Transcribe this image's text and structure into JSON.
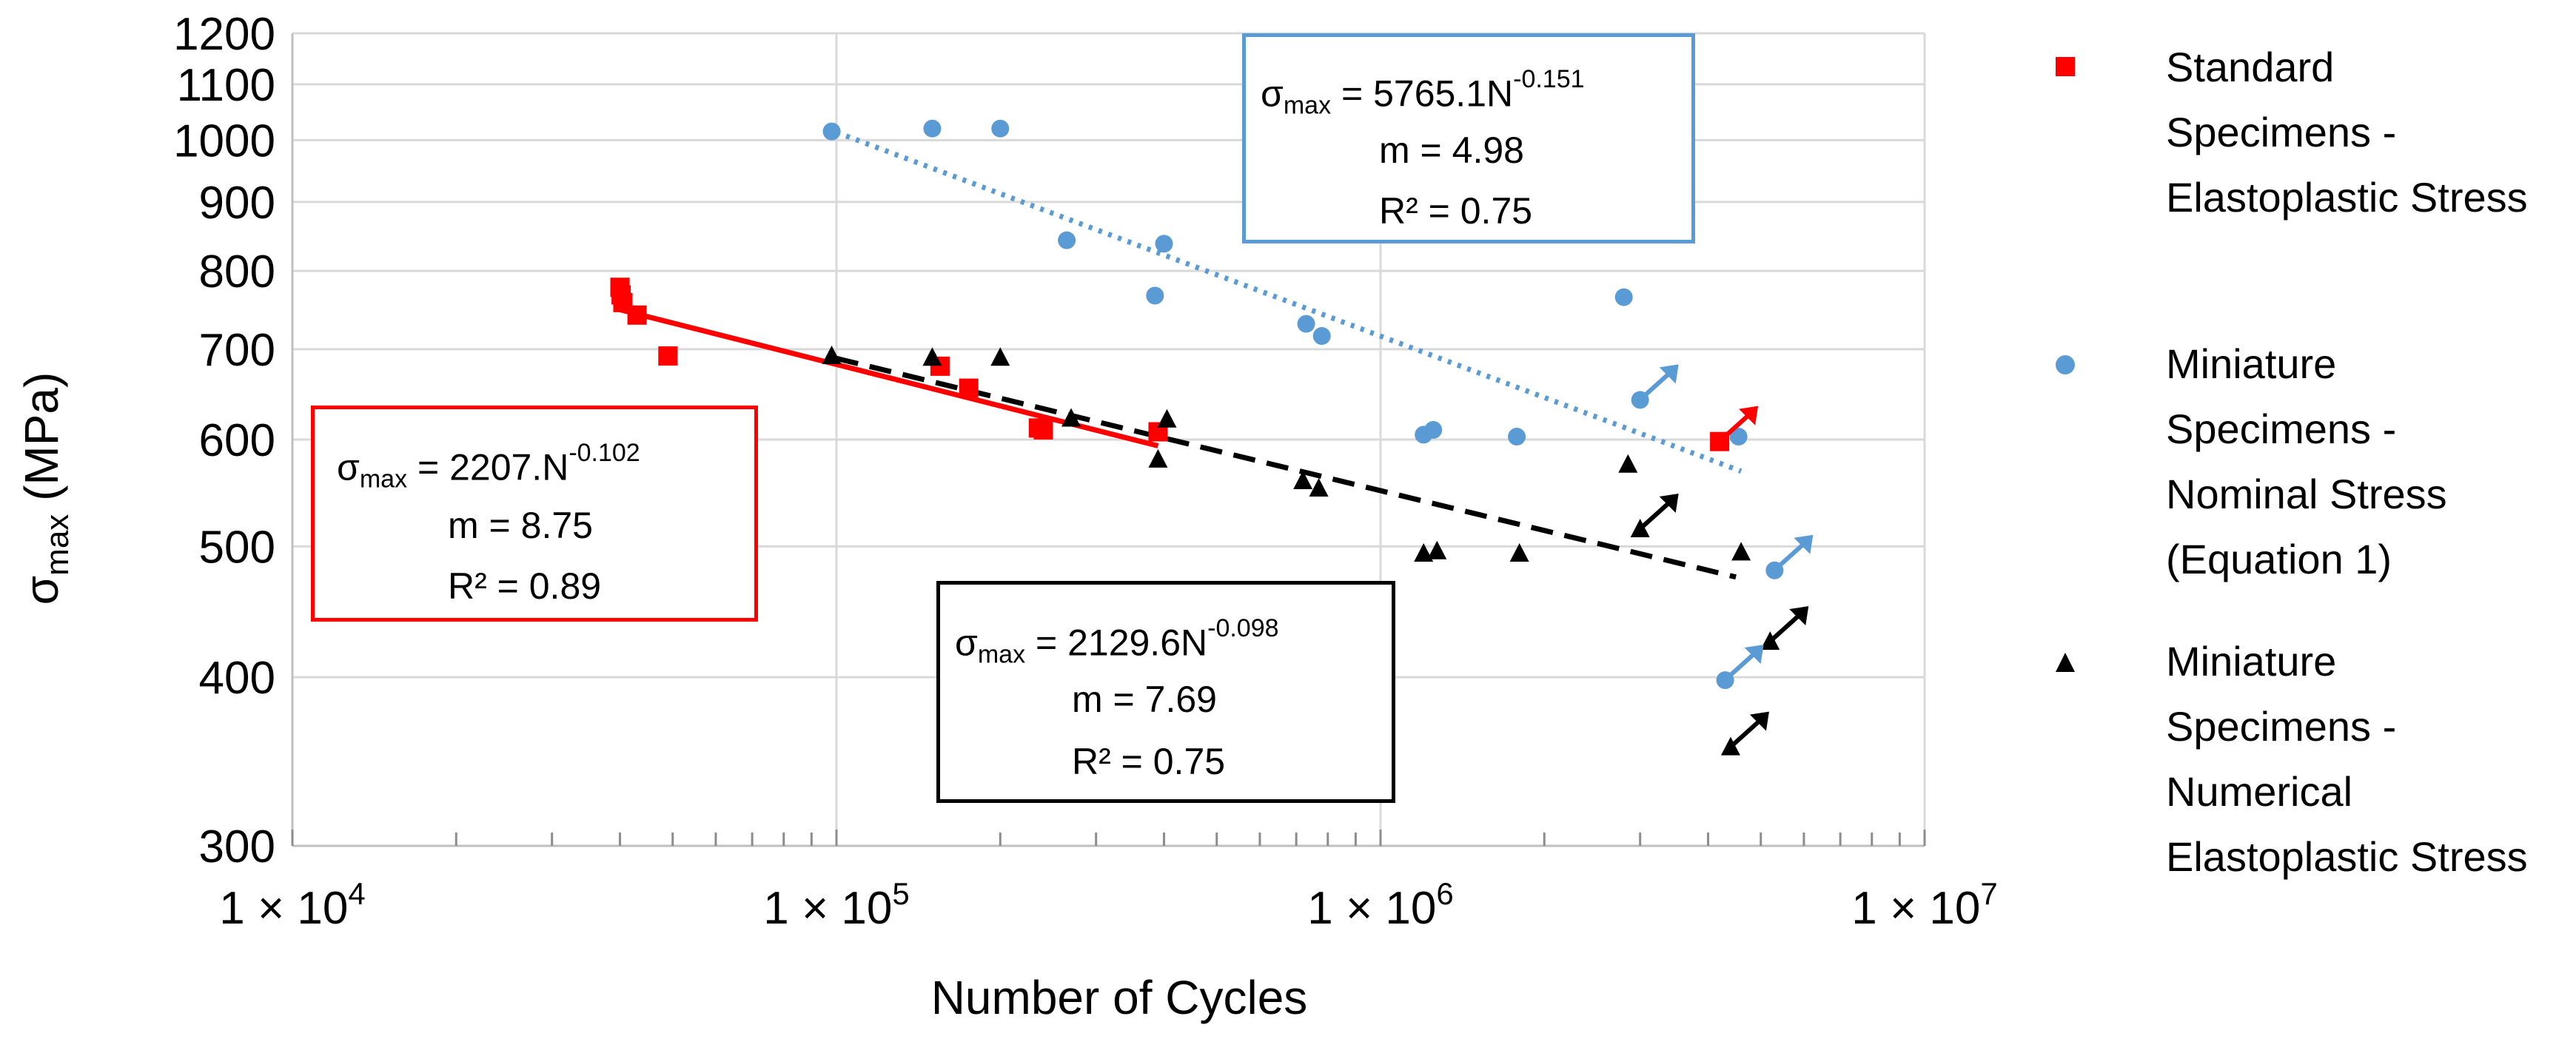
{
  "chart_data": {
    "type": "scatter",
    "xscale": "log",
    "yscale": "log",
    "xlim": [
      10000,
      10000000
    ],
    "ylim": [
      300,
      1200
    ],
    "xlabel": "Number of Cycles",
    "ylabel_main": "σ",
    "ylabel_sub": "max",
    "ylabel_unit": " (MPa)",
    "yticks": [
      300,
      400,
      500,
      600,
      700,
      800,
      900,
      1000,
      1100,
      1200
    ],
    "xtick_labels": [
      {
        "value": 10000,
        "mantissa": "1 × 10",
        "exp": "4"
      },
      {
        "value": 100000,
        "mantissa": "1 × 10",
        "exp": "5"
      },
      {
        "value": 1000000,
        "mantissa": "1 × 10",
        "exp": "6"
      },
      {
        "value": 10000000,
        "mantissa": "1 × 10",
        "exp": "7"
      }
    ],
    "grid": true,
    "series": [
      {
        "name": "Standard Specimens - Elastoplastic Stress",
        "marker": "square",
        "color": "#ff0000",
        "points": [
          [
            40000,
            778
          ],
          [
            40200,
            768
          ],
          [
            40500,
            758
          ],
          [
            43000,
            742
          ],
          [
            49000,
            692
          ],
          [
            155000,
            680
          ],
          [
            175000,
            655
          ],
          [
            235000,
            612
          ],
          [
            240000,
            610
          ],
          [
            390000,
            608
          ],
          [
            4200000,
            598
          ]
        ],
        "runouts": [
          [
            4200000,
            598
          ]
        ],
        "trendline": {
          "equation_lhs": "σ",
          "equation_sub": "max",
          "equation_rhs": " = 2207.N",
          "equation_exp": "-0.102",
          "m": "m = 8.75",
          "r2": "R² = 0.89",
          "range": [
            40000,
            390000
          ],
          "a": 2207,
          "b": -0.102,
          "style": "solid"
        }
      },
      {
        "name": "Miniature Specimens - Nominal Stress (Equation 1)",
        "marker": "circle",
        "color": "#5b9bd5",
        "points": [
          [
            98000,
            1015
          ],
          [
            150000,
            1020
          ],
          [
            200000,
            1020
          ],
          [
            265000,
            843
          ],
          [
            385000,
            767
          ],
          [
            400000,
            838
          ],
          [
            730000,
            731
          ],
          [
            780000,
            716
          ],
          [
            1200000,
            605
          ],
          [
            1250000,
            610
          ],
          [
            1780000,
            603
          ],
          [
            2800000,
            765
          ],
          [
            3000000,
            642
          ],
          [
            4550000,
            603
          ],
          [
            5300000,
            480
          ],
          [
            4300000,
            398
          ]
        ],
        "runouts": [
          [
            3000000,
            642
          ],
          [
            5300000,
            480
          ],
          [
            4300000,
            398
          ]
        ],
        "trendline": {
          "equation_lhs": "σ",
          "equation_sub": "max",
          "equation_rhs": " = 5765.1N",
          "equation_exp": "-0.151",
          "m": "m = 4.98",
          "r2": "R² = 0.75",
          "range": [
            100000,
            4600000
          ],
          "a": 5765.1,
          "b": -0.151,
          "style": "dotted"
        }
      },
      {
        "name": "Miniature Specimens - Numerical Elastoplastic Stress",
        "marker": "triangle",
        "color": "#000000",
        "points": [
          [
            98000,
            692
          ],
          [
            150000,
            690
          ],
          [
            200000,
            690
          ],
          [
            270000,
            622
          ],
          [
            390000,
            580
          ],
          [
            405000,
            621
          ],
          [
            720000,
            559
          ],
          [
            770000,
            552
          ],
          [
            1200000,
            494
          ],
          [
            1270000,
            496
          ],
          [
            1800000,
            494
          ],
          [
            2850000,
            575
          ],
          [
            3000000,
            515
          ],
          [
            4600000,
            495
          ],
          [
            5200000,
            425
          ],
          [
            4400000,
            355
          ]
        ],
        "runouts": [
          [
            3000000,
            515
          ],
          [
            5200000,
            425
          ],
          [
            4400000,
            355
          ]
        ],
        "trendline": {
          "equation_lhs": "σ",
          "equation_sub": "max",
          "equation_rhs": " = 2129.6N",
          "equation_exp": "-0.098",
          "m": "m = 7.69",
          "r2": "R² = 0.75",
          "range": [
            100000,
            4500000
          ],
          "a": 2129.6,
          "b": -0.098,
          "style": "dashed"
        }
      }
    ],
    "legend": {
      "placement": "right",
      "entries": [
        {
          "lines": [
            "Standard",
            "Specimens -",
            "Elastoplastic Stress"
          ],
          "marker": "square",
          "color": "#ff0000"
        },
        {
          "lines": [
            "Miniature",
            "Specimens -",
            "Nominal Stress",
            "(Equation 1)"
          ],
          "marker": "circle",
          "color": "#5b9bd5"
        },
        {
          "lines": [
            "Miniature",
            "Specimens -",
            "Numerical",
            "Elastoplastic Stress"
          ],
          "marker": "triangle",
          "color": "#000000"
        }
      ]
    }
  }
}
